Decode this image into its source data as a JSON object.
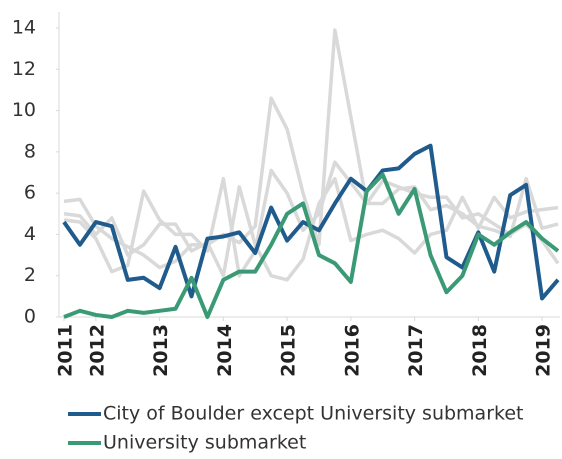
{
  "chart_data": {
    "type": "line",
    "x": [
      2011.5,
      2011.75,
      2012,
      2012.25,
      2012.5,
      2012.75,
      2013,
      2013.25,
      2013.5,
      2013.75,
      2014,
      2014.25,
      2014.5,
      2014.75,
      2015,
      2015.25,
      2015.5,
      2015.75,
      2016,
      2016.25,
      2016.5,
      2016.75,
      2017,
      2017.25,
      2017.5,
      2017.75,
      2018,
      2018.25,
      2018.5,
      2018.75,
      2019,
      2019.25
    ],
    "series": [
      {
        "color": "#d9d9d9",
        "values": [
          5.6,
          5.7,
          4.4,
          3.8,
          3.4,
          3.0,
          2.4,
          2.7,
          3.5,
          3.5,
          4.0,
          3.6,
          4.4,
          10.6,
          9.1,
          6.0,
          3.5,
          13.9,
          9.7,
          5.5,
          6.6,
          6.3,
          6.0,
          5.8,
          5.8,
          4.8,
          5.0,
          4.5,
          4.0,
          4.5,
          3.7,
          2.6
        ]
      },
      {
        "color": "#d9d9d9",
        "values": [
          4.7,
          4.6,
          3.8,
          2.2,
          2.5,
          6.1,
          4.7,
          4.0,
          4.0,
          3.2,
          6.7,
          2.0,
          3.2,
          7.1,
          6.0,
          4.2,
          5.0,
          7.5,
          6.5,
          5.5,
          5.5,
          6.2,
          6.3,
          5.2,
          5.4,
          5.0,
          4.4,
          4.2,
          3.9,
          6.7,
          4.3,
          4.5
        ]
      },
      {
        "color": "#d9d9d9",
        "values": [
          5.0,
          4.9,
          4.0,
          4.8,
          3.0,
          3.5,
          4.5,
          4.5,
          3.2,
          3.6,
          2.0,
          6.3,
          3.5,
          2.0,
          1.8,
          2.8,
          5.5,
          6.7,
          3.7,
          4.0,
          4.2,
          3.8,
          3.1,
          4.0,
          4.2,
          5.8,
          4.3,
          5.8,
          4.8,
          5.1,
          5.2,
          5.3
        ]
      },
      {
        "name": "City of Boulder except University submarket",
        "color": "#1f5b8c",
        "values": [
          4.6,
          3.5,
          4.6,
          4.4,
          1.8,
          1.9,
          1.4,
          3.4,
          1.0,
          3.8,
          3.9,
          4.1,
          3.1,
          5.3,
          3.7,
          4.6,
          4.2,
          5.5,
          6.7,
          6.1,
          7.1,
          7.2,
          7.9,
          8.3,
          2.9,
          2.4,
          4.1,
          2.2,
          5.9,
          6.4,
          0.9,
          1.8
        ]
      },
      {
        "name": "University submarket",
        "color": "#3a9a76",
        "values": [
          0,
          0.3,
          0.1,
          0,
          0.3,
          0.2,
          0.3,
          0.4,
          1.9,
          0,
          1.8,
          2.2,
          2.2,
          3.5,
          5.0,
          5.5,
          3.0,
          2.6,
          1.7,
          6.1,
          6.9,
          5.0,
          6.2,
          3.0,
          1.2,
          2.0,
          4.0,
          3.5,
          4.1,
          4.6,
          3.8,
          3.2
        ]
      }
    ],
    "xlim": [
      2011.5,
      2019.25
    ],
    "xticks": [
      {
        "value": 2011.5,
        "label": "2011"
      },
      2012,
      2013,
      2014,
      2015,
      2016,
      2017,
      2018,
      2019
    ],
    "ylim": [
      0,
      14
    ],
    "yticks": [
      0,
      2,
      4,
      6,
      8,
      10,
      12,
      14
    ]
  }
}
